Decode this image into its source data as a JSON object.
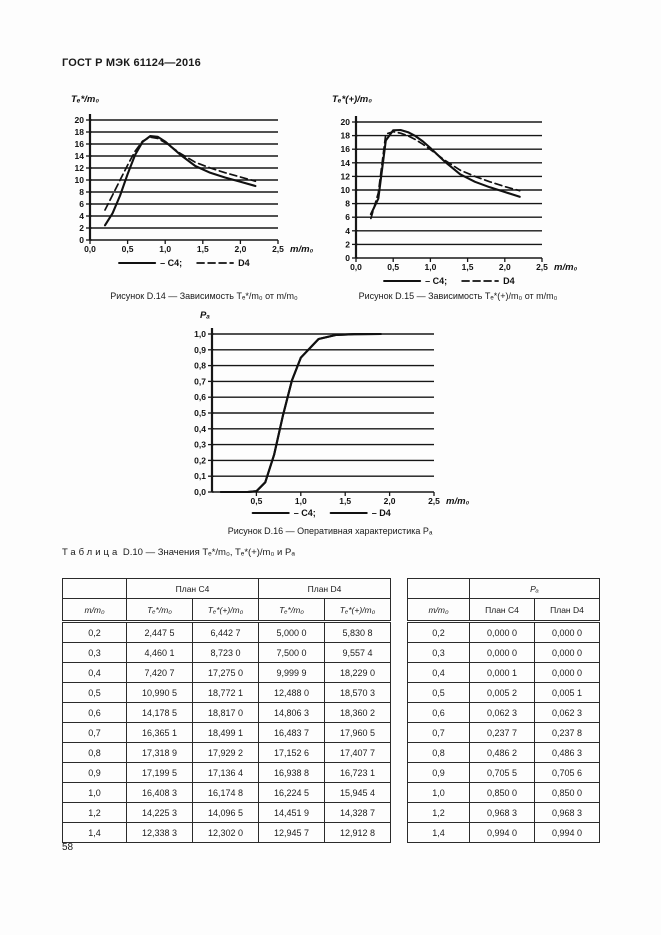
{
  "page": {
    "header_title": "ГОСТ Р МЭК 61124—2016",
    "page_number": "58",
    "ink_color": "#1a1a1a",
    "background": "#fdfdfd"
  },
  "chart_data": [
    {
      "id": "d14",
      "type": "line",
      "title": "Рисунок D.14 — Зависимость Tₑ*/m₀ от m/m₀",
      "ylabel": "Tₑ*/m₀",
      "xlabel": "m/m₀",
      "xlim": [
        0,
        2.5
      ],
      "ylim": [
        0,
        20
      ],
      "grid": "horizontal",
      "legend_position": "bottom",
      "xticks": [
        0,
        0.5,
        1.0,
        1.5,
        2.0,
        2.5
      ],
      "xtick_labels": [
        "0,0",
        "0,5",
        "1,0",
        "1,5",
        "2,0",
        "2,5"
      ],
      "yticks": [
        0,
        2,
        4,
        6,
        8,
        10,
        12,
        14,
        16,
        18,
        20
      ],
      "ytick_labels": [
        "0",
        "2",
        "4",
        "6",
        "8",
        "10",
        "12",
        "14",
        "16",
        "18",
        "20"
      ],
      "x": [
        0.2,
        0.3,
        0.4,
        0.5,
        0.6,
        0.7,
        0.8,
        0.9,
        1.0,
        1.2,
        1.4,
        1.6,
        1.8,
        2.0,
        2.2
      ],
      "series": [
        {
          "name": "C4",
          "style": "solid",
          "values": [
            2.4475,
            4.4601,
            7.4207,
            10.9905,
            14.1785,
            16.3651,
            17.3189,
            17.1995,
            16.4083,
            14.2253,
            12.3383,
            11.2,
            10.4,
            9.7,
            9.0
          ]
        },
        {
          "name": "D4",
          "style": "dashed",
          "values": [
            5.0,
            7.5,
            9.9999,
            12.488,
            14.8063,
            16.4837,
            17.1526,
            16.9388,
            16.2245,
            14.4519,
            12.9457,
            12.0,
            11.2,
            10.5,
            9.8
          ]
        }
      ],
      "legend": [
        {
          "label": "– C4;",
          "style": "solid"
        },
        {
          "label": "D4",
          "style": "dashed"
        }
      ]
    },
    {
      "id": "d15",
      "type": "line",
      "title": "Рисунок D.15 — Зависимость Tₑ*(+)/m₀ от m/m₀",
      "ylabel": "Tₑ*(+)/m₀",
      "xlabel": "m/m₀",
      "xlim": [
        0,
        2.5
      ],
      "ylim": [
        0,
        20
      ],
      "grid": "horizontal",
      "legend_position": "bottom",
      "xticks": [
        0,
        0.5,
        1.0,
        1.5,
        2.0,
        2.5
      ],
      "xtick_labels": [
        "0,0",
        "0,5",
        "1,0",
        "1,5",
        "2,0",
        "2,5"
      ],
      "yticks": [
        0,
        2,
        4,
        6,
        8,
        10,
        12,
        14,
        16,
        18,
        20
      ],
      "ytick_labels": [
        "0",
        "2",
        "4",
        "6",
        "8",
        "10",
        "12",
        "14",
        "16",
        "18",
        "20"
      ],
      "x": [
        0.2,
        0.3,
        0.4,
        0.5,
        0.6,
        0.7,
        0.8,
        0.9,
        1.0,
        1.2,
        1.4,
        1.6,
        1.8,
        2.0,
        2.2
      ],
      "series": [
        {
          "name": "C4",
          "style": "solid",
          "values": [
            6.4427,
            8.723,
            17.275,
            18.7721,
            18.817,
            18.4991,
            17.9292,
            17.1364,
            16.1748,
            14.0965,
            12.302,
            11.2,
            10.4,
            9.7,
            9.0
          ]
        },
        {
          "name": "D4",
          "style": "dashed",
          "values": [
            5.8308,
            9.5574,
            18.229,
            18.5703,
            18.3602,
            17.9605,
            17.4077,
            16.7231,
            15.9454,
            14.3287,
            12.9128,
            12.0,
            11.2,
            10.5,
            9.9
          ]
        }
      ],
      "legend": [
        {
          "label": "– C4;",
          "style": "solid"
        },
        {
          "label": "D4",
          "style": "dashed"
        }
      ]
    },
    {
      "id": "d16",
      "type": "line",
      "title": "Рисунок D.16 — Оперативная характеристика Pₐ",
      "ylabel": "Pₐ",
      "xlabel": "m/m₀",
      "xlim": [
        0,
        2.5
      ],
      "ylim": [
        0,
        1.0
      ],
      "grid": "horizontal",
      "legend_position": "bottom",
      "xticks": [
        0.5,
        1.0,
        1.5,
        2.0,
        2.5
      ],
      "xtick_labels": [
        "0,5",
        "1,0",
        "1,5",
        "2,0",
        "2,5"
      ],
      "yticks": [
        0,
        0.1,
        0.2,
        0.3,
        0.4,
        0.5,
        0.6,
        0.7,
        0.8,
        0.9,
        1.0
      ],
      "ytick_labels": [
        "0,0",
        "0,1",
        "0,2",
        "0,3",
        "0,4",
        "0,5",
        "0,6",
        "0,7",
        "0,8",
        "0,9",
        "1,0"
      ],
      "x": [
        0.1,
        0.2,
        0.3,
        0.4,
        0.5,
        0.6,
        0.7,
        0.8,
        0.9,
        1.0,
        1.2,
        1.4,
        1.6,
        1.9
      ],
      "series": [
        {
          "name": "C4",
          "style": "solid",
          "values": [
            0.0,
            0.0,
            0.0,
            0.0001,
            0.0052,
            0.0623,
            0.2377,
            0.4862,
            0.7055,
            0.85,
            0.9683,
            0.994,
            0.999,
            1.0
          ]
        },
        {
          "name": "D4",
          "style": "solid",
          "values": [
            0.0,
            0.0,
            0.0,
            0.0,
            0.0051,
            0.0623,
            0.2378,
            0.4863,
            0.7056,
            0.85,
            0.9683,
            0.994,
            0.999,
            1.0
          ]
        }
      ],
      "legend": [
        {
          "label": "– C4;",
          "style": "solid"
        },
        {
          "label": "– D4",
          "style": "solid"
        }
      ]
    }
  ],
  "table": {
    "title_word": "Таблица",
    "title_rest": "D.10 — Значения Tₑ*/m₀, Tₑ*(+)/m₀ и Pₐ",
    "left": {
      "group_headers": [
        "План C4",
        "План D4"
      ],
      "col_headers": [
        "m/m₀",
        "Tₑ*/m₀",
        "Tₑ*(+)/m₀",
        "Tₑ*/m₀",
        "Tₑ*(+)/m₀"
      ],
      "rows": [
        [
          "0,2",
          "2,447 5",
          "6,442 7",
          "5,000 0",
          "5,830 8"
        ],
        [
          "0,3",
          "4,460 1",
          "8,723 0",
          "7,500 0",
          "9,557 4"
        ],
        [
          "0,4",
          "7,420 7",
          "17,275 0",
          "9,999 9",
          "18,229 0"
        ],
        [
          "0,5",
          "10,990 5",
          "18,772 1",
          "12,488 0",
          "18,570 3"
        ],
        [
          "0,6",
          "14,178 5",
          "18,817 0",
          "14,806 3",
          "18,360 2"
        ],
        [
          "0,7",
          "16,365 1",
          "18,499 1",
          "16,483 7",
          "17,960 5"
        ],
        [
          "0,8",
          "17,318 9",
          "17,929 2",
          "17,152 6",
          "17,407 7"
        ],
        [
          "0,9",
          "17,199 5",
          "17,136 4",
          "16,938 8",
          "16,723 1"
        ],
        [
          "1,0",
          "16,408 3",
          "16,174 8",
          "16,224 5",
          "15,945 4"
        ],
        [
          "1,2",
          "14,225 3",
          "14,096 5",
          "14,451 9",
          "14,328 7"
        ],
        [
          "1,4",
          "12,338 3",
          "12,302 0",
          "12,945 7",
          "12,912 8"
        ]
      ]
    },
    "right": {
      "group_header": "Pₐ",
      "col_headers": [
        "m/m₀",
        "План C4",
        "План D4"
      ],
      "rows": [
        [
          "0,2",
          "0,000 0",
          "0,000 0"
        ],
        [
          "0,3",
          "0,000 0",
          "0,000 0"
        ],
        [
          "0,4",
          "0,000 1",
          "0,000 0"
        ],
        [
          "0,5",
          "0,005 2",
          "0,005 1"
        ],
        [
          "0,6",
          "0,062 3",
          "0,062 3"
        ],
        [
          "0,7",
          "0,237 7",
          "0,237 8"
        ],
        [
          "0,8",
          "0,486 2",
          "0,486 3"
        ],
        [
          "0,9",
          "0,705 5",
          "0,705 6"
        ],
        [
          "1,0",
          "0,850 0",
          "0,850 0"
        ],
        [
          "1,2",
          "0,968 3",
          "0,968 3"
        ],
        [
          "1,4",
          "0,994 0",
          "0,994 0"
        ]
      ]
    }
  }
}
